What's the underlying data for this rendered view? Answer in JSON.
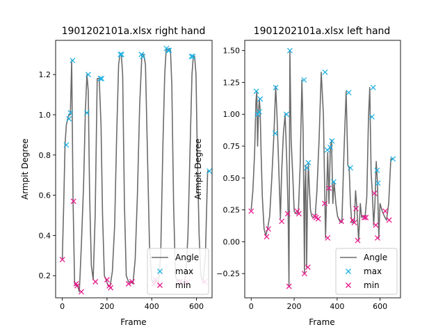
{
  "chart_data": [
    {
      "type": "line",
      "title": "1901202101a.xlsx right hand",
      "xlabel": "Frame",
      "ylabel": "Armpit Degree",
      "xlim": [
        -30,
        670
      ],
      "ylim": [
        0.09,
        1.37
      ],
      "xticks": [
        0,
        200,
        400,
        600
      ],
      "yticks": [
        0.2,
        0.4,
        0.6,
        0.8,
        1.0,
        1.2
      ],
      "ytick_labels": [
        "0.2",
        "0.4",
        "0.6",
        "0.8",
        "1.0",
        "1.2"
      ],
      "legend": {
        "placement": "lower right",
        "entries": [
          "Angle",
          "max",
          "min"
        ]
      },
      "colors": {
        "angle": "#6b6b6b",
        "max": "#1fb2e3",
        "min": "#e8198b"
      },
      "series": [
        {
          "name": "Angle",
          "x": [
            0,
            6,
            12,
            18,
            24,
            30,
            36,
            42,
            48,
            55,
            62,
            68,
            76,
            85,
            95,
            103,
            110,
            116,
            122,
            130,
            138,
            147,
            156,
            165,
            173,
            180,
            188,
            196,
            205,
            214,
            224,
            234,
            243,
            252,
            258,
            264,
            270,
            278,
            286,
            296,
            306,
            316,
            326,
            336,
            346,
            356,
            364,
            372,
            380,
            390,
            400,
            410,
            420,
            430,
            440,
            450,
            458,
            465,
            472,
            478,
            484,
            490,
            498,
            506,
            514,
            522,
            532,
            542,
            552,
            562,
            572,
            580,
            586,
            592,
            598,
            604,
            612,
            620,
            630,
            640,
            650,
            655
          ],
          "y": [
            0.28,
            0.55,
            0.85,
            0.95,
            0.98,
            1.0,
            1.0,
            1.27,
            0.57,
            0.16,
            0.15,
            0.15,
            0.12,
            0.35,
            0.65,
            1.02,
            1.2,
            1.12,
            0.6,
            0.25,
            0.18,
            0.5,
            1.18,
            1.18,
            0.95,
            0.5,
            0.2,
            0.18,
            0.15,
            0.15,
            0.22,
            0.45,
            0.9,
            1.25,
            1.3,
            1.3,
            1.2,
            0.55,
            0.2,
            0.17,
            0.17,
            0.16,
            0.28,
            0.6,
            1.05,
            1.3,
            1.3,
            1.25,
            0.85,
            0.35,
            0.18,
            0.16,
            0.18,
            0.16,
            0.3,
            0.85,
            1.2,
            1.33,
            1.32,
            1.33,
            1.32,
            1.15,
            0.55,
            0.2,
            0.17,
            0.18,
            0.17,
            0.16,
            0.2,
            0.4,
            0.85,
            1.2,
            1.29,
            1.29,
            1.2,
            0.8,
            0.4,
            0.2,
            0.17,
            0.3,
            0.72,
            0.72
          ]
        },
        {
          "name": "max",
          "x": [
            18,
            30,
            36,
            46,
            110,
            116,
            170,
            176,
            260,
            265,
            354,
            360,
            466,
            474,
            478,
            578,
            584,
            658
          ],
          "y": [
            0.85,
            0.98,
            1.01,
            1.27,
            1.01,
            1.2,
            1.18,
            1.18,
            1.3,
            1.3,
            1.3,
            1.29,
            1.33,
            1.32,
            1.32,
            1.29,
            1.29,
            0.72
          ]
        },
        {
          "name": "min",
          "x": [
            0,
            50,
            62,
            66,
            85,
            148,
            200,
            210,
            216,
            296,
            312,
            410,
            416,
            526,
            552,
            558,
            636
          ],
          "y": [
            0.28,
            0.57,
            0.16,
            0.15,
            0.12,
            0.17,
            0.18,
            0.15,
            0.14,
            0.16,
            0.17,
            0.16,
            0.18,
            0.17,
            0.16,
            0.17,
            0.17
          ]
        }
      ]
    },
    {
      "type": "line",
      "title": "1901202101a.xlsx left hand",
      "xlabel": "Frame",
      "ylabel": "Armpit Degree",
      "xlim": [
        -30,
        695
      ],
      "ylim": [
        -0.44,
        1.58
      ],
      "xticks": [
        0,
        200,
        400,
        600
      ],
      "yticks": [
        -0.25,
        0.0,
        0.25,
        0.5,
        0.75,
        1.0,
        1.25,
        1.5
      ],
      "ytick_labels": [
        "−0.25",
        "0.00",
        "0.25",
        "0.50",
        "0.75",
        "1.00",
        "1.25",
        "1.50"
      ],
      "legend": {
        "placement": "lower right",
        "entries": [
          "Angle",
          "max",
          "min"
        ]
      },
      "colors": {
        "angle": "#6b6b6b",
        "max": "#1fb2e3",
        "min": "#e8198b"
      },
      "series": [
        {
          "name": "Angle",
          "x": [
            0,
            8,
            16,
            22,
            26,
            30,
            34,
            38,
            42,
            46,
            52,
            60,
            68,
            76,
            86,
            96,
            106,
            114,
            120,
            128,
            136,
            142,
            150,
            158,
            166,
            172,
            176,
            180,
            186,
            194,
            200,
            208,
            214,
            220,
            228,
            236,
            242,
            248,
            250,
            254,
            258,
            262,
            266,
            270,
            276,
            282,
            290,
            298,
            306,
            316,
            326,
            336,
            346,
            356,
            362,
            368,
            374,
            380,
            386,
            394,
            402,
            412,
            422,
            432,
            442,
            450,
            456,
            462,
            468,
            474,
            480,
            486,
            492,
            500,
            508,
            514,
            522,
            530,
            538,
            546,
            552,
            558,
            564,
            570,
            576,
            582,
            588,
            594,
            600,
            610,
            620,
            630,
            640,
            650,
            660
          ],
          "y": [
            0.25,
            0.4,
            0.7,
            1.1,
            1.18,
            0.75,
            1.02,
            1.12,
            1.02,
            0.7,
            0.35,
            0.1,
            0.05,
            0.1,
            0.2,
            0.5,
            0.85,
            1.22,
            1.0,
            0.6,
            0.18,
            0.55,
            0.85,
            1.0,
            0.6,
            0.22,
            -0.35,
            1.5,
            0.8,
            0.5,
            0.24,
            0.22,
            0.22,
            0.24,
            0.6,
            1.27,
            0.85,
            -0.25,
            0.4,
            0.6,
            -0.2,
            0.3,
            0.62,
            0.45,
            0.25,
            0.2,
            0.19,
            0.2,
            0.4,
            0.8,
            1.33,
            1.0,
            0.03,
            0.7,
            0.3,
            0.72,
            0.8,
            0.3,
            0.47,
            0.3,
            0.2,
            0.16,
            0.15,
            0.7,
            1.18,
            0.6,
            0.58,
            0.3,
            0.15,
            0.15,
            0.16,
            0.4,
            0.26,
            0.01,
            0.3,
            0.19,
            0.2,
            0.19,
            0.35,
            0.98,
            1.21,
            0.55,
            0.38,
            0.13,
            0.3,
            0.63,
            0.46,
            0.03,
            0.3,
            0.24,
            0.2,
            0.17,
            0.3,
            0.65,
            0.65
          ]
        },
        {
          "name": "max",
          "x": [
            24,
            30,
            38,
            42,
            114,
            112,
            164,
            180,
            246,
            258,
            266,
            344,
            354,
            368,
            376,
            384,
            454,
            462,
            562,
            568,
            586,
            590,
            660
          ],
          "y": [
            1.18,
            1.0,
            1.02,
            1.12,
            1.21,
            0.85,
            1.0,
            1.5,
            1.27,
            0.58,
            0.62,
            1.33,
            0.72,
            0.74,
            0.79,
            0.47,
            1.17,
            0.58,
            0.98,
            1.21,
            0.56,
            0.46,
            0.65
          ]
        },
        {
          "name": "min",
          "x": [
            0,
            72,
            80,
            142,
            170,
            176,
            214,
            222,
            248,
            264,
            296,
            302,
            312,
            342,
            356,
            362,
            420,
            472,
            480,
            488,
            496,
            526,
            534,
            574,
            580,
            588,
            624,
            642
          ],
          "y": [
            0.24,
            0.04,
            0.1,
            0.16,
            0.22,
            -0.35,
            0.24,
            0.22,
            -0.25,
            -0.2,
            0.2,
            0.19,
            0.18,
            0.3,
            0.03,
            0.42,
            0.16,
            0.17,
            0.15,
            0.26,
            0.01,
            0.19,
            0.19,
            0.38,
            0.13,
            0.03,
            0.24,
            0.17
          ]
        }
      ]
    }
  ]
}
